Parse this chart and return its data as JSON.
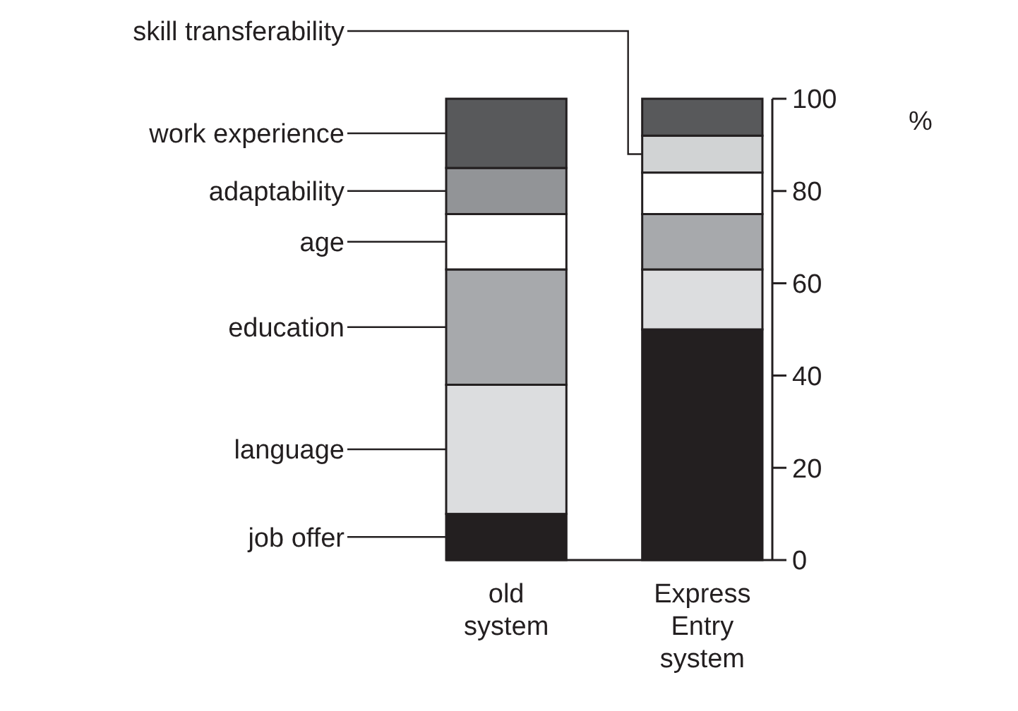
{
  "chart_data": {
    "type": "bar",
    "stacked": true,
    "ylabel": "%",
    "categories": [
      "old system",
      "Express Entry system"
    ],
    "series": [
      {
        "name": "job offer",
        "color": "#231f20",
        "values": [
          10,
          50
        ]
      },
      {
        "name": "language",
        "color": "#dcdddf",
        "values": [
          28,
          13
        ]
      },
      {
        "name": "education",
        "color": "#a7a9ac",
        "values": [
          25,
          12
        ]
      },
      {
        "name": "age",
        "color": "#ffffff",
        "values": [
          12,
          9
        ]
      },
      {
        "name": "adaptability",
        "color": "#929497",
        "values": [
          10,
          null
        ]
      },
      {
        "name": "skill transferability",
        "color": "#d1d3d4",
        "values": [
          null,
          8
        ]
      },
      {
        "name": "work experience",
        "color": "#58595b",
        "values": [
          15,
          8
        ]
      }
    ],
    "ylim": [
      0,
      100
    ],
    "yticks": [
      0,
      20,
      40,
      60,
      80,
      100
    ],
    "legend": "left"
  }
}
